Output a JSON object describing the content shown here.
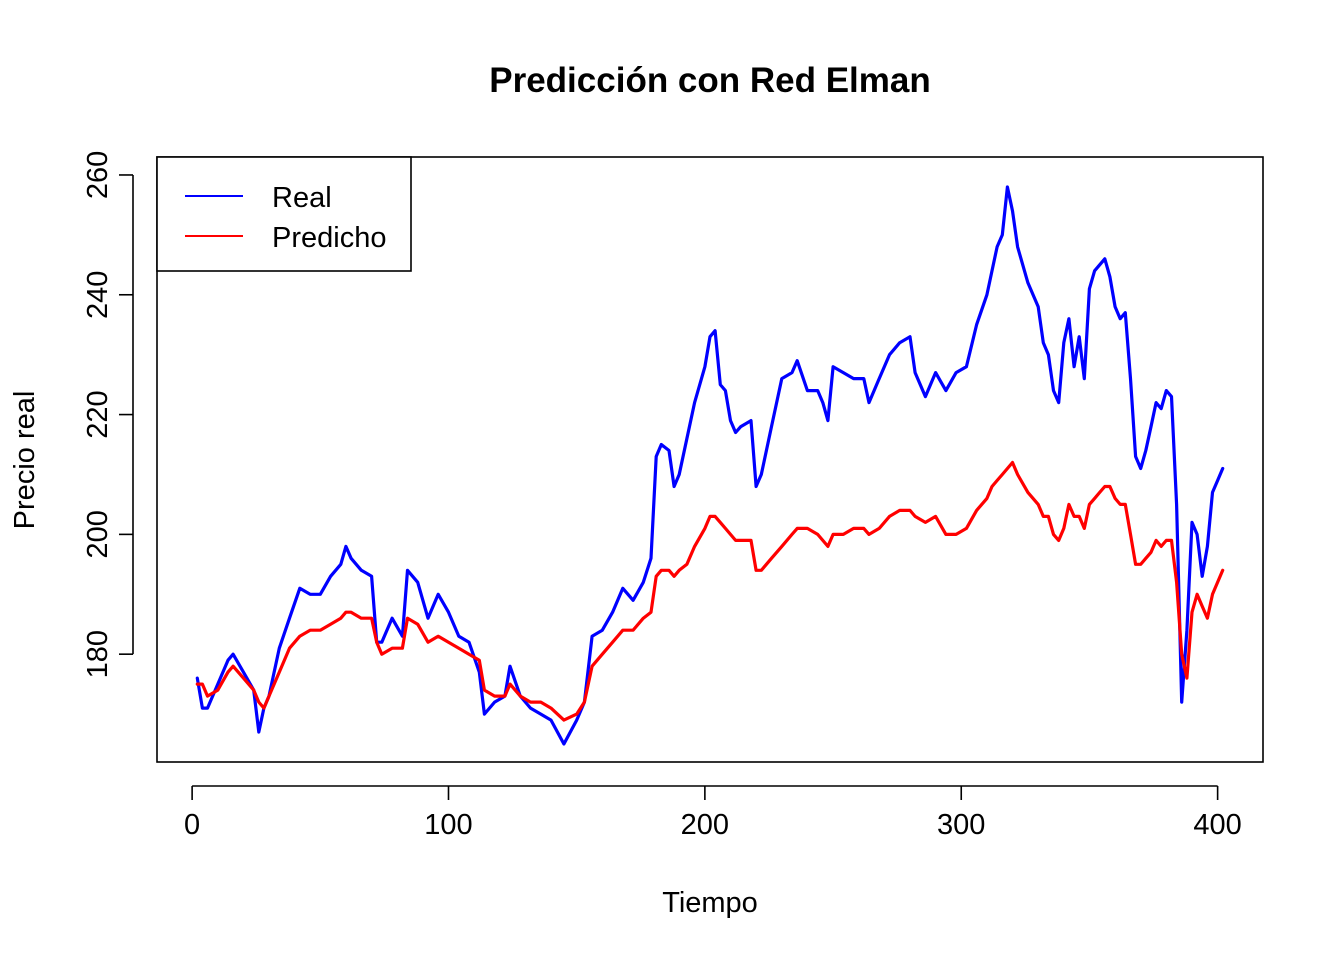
{
  "chart_data": {
    "type": "line",
    "title": "Predicción con Red Elman",
    "xlabel": "Tiempo",
    "ylabel": "Precio real",
    "xlim": [
      -13.7,
      417.7
    ],
    "ylim": [
      162,
      263
    ],
    "xticks": [
      0,
      100,
      200,
      300,
      400
    ],
    "yticks": [
      180,
      200,
      220,
      240,
      260
    ],
    "grid": false,
    "legend": {
      "placement": "top-left",
      "entries": [
        {
          "label": "Real",
          "color": "#0000FF"
        },
        {
          "label": "Predicho",
          "color": "#FF0000"
        }
      ]
    },
    "series": [
      {
        "name": "Real",
        "color": "#0000FF",
        "x": [
          2,
          4,
          6,
          10,
          14,
          16,
          20,
          24,
          26,
          28,
          30,
          34,
          38,
          42,
          46,
          50,
          54,
          58,
          60,
          62,
          66,
          70,
          72,
          74,
          78,
          82,
          84,
          88,
          92,
          96,
          100,
          104,
          108,
          112,
          114,
          118,
          122,
          124,
          128,
          132,
          136,
          140,
          145,
          150,
          153,
          156,
          160,
          164,
          168,
          172,
          176,
          179,
          181,
          183,
          186,
          188,
          190,
          193,
          196,
          200,
          202,
          204,
          206,
          208,
          210,
          212,
          214,
          218,
          220,
          222,
          226,
          230,
          234,
          236,
          240,
          244,
          246,
          248,
          250,
          254,
          258,
          262,
          264,
          268,
          272,
          276,
          280,
          282,
          286,
          290,
          294,
          298,
          302,
          306,
          310,
          312,
          314,
          316,
          318,
          320,
          322,
          326,
          330,
          332,
          334,
          336,
          338,
          340,
          342,
          344,
          346,
          348,
          350,
          352,
          354,
          356,
          358,
          360,
          362,
          364,
          366,
          368,
          370,
          372,
          374,
          376,
          378,
          380,
          382,
          384,
          386,
          388,
          390,
          392,
          394,
          396,
          398,
          400,
          402
        ],
        "y": [
          176,
          171,
          171,
          175,
          179,
          180,
          177,
          174,
          167,
          171,
          173,
          181,
          186,
          191,
          190,
          190,
          193,
          195,
          198,
          196,
          194,
          193,
          182,
          182,
          186,
          183,
          194,
          192,
          186,
          190,
          187,
          183,
          182,
          177,
          170,
          172,
          173,
          178,
          173,
          171,
          170,
          169,
          165,
          169,
          172,
          183,
          184,
          187,
          191,
          189,
          192,
          196,
          213,
          215,
          214,
          208,
          210,
          216,
          222,
          228,
          233,
          234,
          225,
          224,
          219,
          217,
          218,
          219,
          208,
          210,
          218,
          226,
          227,
          229,
          224,
          224,
          222,
          219,
          228,
          227,
          226,
          226,
          222,
          226,
          230,
          232,
          233,
          227,
          223,
          227,
          224,
          227,
          228,
          235,
          240,
          244,
          248,
          250,
          258,
          254,
          248,
          242,
          238,
          232,
          230,
          224,
          222,
          232,
          236,
          228,
          233,
          226,
          241,
          244,
          245,
          246,
          243,
          238,
          236,
          237,
          226,
          213,
          211,
          214,
          218,
          222,
          221,
          224,
          223,
          205,
          172,
          184,
          202,
          200,
          193,
          198,
          207,
          209,
          211
        ]
      },
      {
        "name": "Predicho",
        "color": "#FF0000",
        "x": [
          2,
          4,
          6,
          10,
          14,
          16,
          20,
          24,
          26,
          28,
          30,
          34,
          38,
          42,
          46,
          50,
          54,
          58,
          60,
          62,
          66,
          70,
          72,
          74,
          78,
          82,
          84,
          88,
          92,
          96,
          100,
          104,
          108,
          112,
          114,
          118,
          122,
          124,
          128,
          132,
          136,
          140,
          145,
          150,
          153,
          156,
          160,
          164,
          168,
          172,
          176,
          179,
          181,
          183,
          186,
          188,
          190,
          193,
          196,
          200,
          202,
          204,
          206,
          208,
          210,
          212,
          214,
          218,
          220,
          222,
          226,
          230,
          234,
          236,
          240,
          244,
          246,
          248,
          250,
          254,
          258,
          262,
          264,
          268,
          272,
          276,
          280,
          282,
          286,
          290,
          294,
          298,
          302,
          306,
          310,
          312,
          314,
          316,
          318,
          320,
          322,
          326,
          330,
          332,
          334,
          336,
          338,
          340,
          342,
          344,
          346,
          348,
          350,
          352,
          354,
          356,
          358,
          360,
          362,
          364,
          366,
          368,
          370,
          372,
          374,
          376,
          378,
          380,
          382,
          384,
          386,
          388,
          390,
          392,
          394,
          396,
          398,
          400,
          402
        ],
        "y": [
          175,
          175,
          173,
          174,
          177,
          178,
          176,
          174,
          172,
          171,
          173,
          177,
          181,
          183,
          184,
          184,
          185,
          186,
          187,
          187,
          186,
          186,
          182,
          180,
          181,
          181,
          186,
          185,
          182,
          183,
          182,
          181,
          180,
          179,
          174,
          173,
          173,
          175,
          173,
          172,
          172,
          171,
          169,
          170,
          172,
          178,
          180,
          182,
          184,
          184,
          186,
          187,
          193,
          194,
          194,
          193,
          194,
          195,
          198,
          201,
          203,
          203,
          202,
          201,
          200,
          199,
          199,
          199,
          194,
          194,
          196,
          198,
          200,
          201,
          201,
          200,
          199,
          198,
          200,
          200,
          201,
          201,
          200,
          201,
          203,
          204,
          204,
          203,
          202,
          203,
          200,
          200,
          201,
          204,
          206,
          208,
          209,
          210,
          211,
          212,
          210,
          207,
          205,
          203,
          203,
          200,
          199,
          201,
          205,
          203,
          203,
          201,
          205,
          206,
          207,
          208,
          208,
          206,
          205,
          205,
          200,
          195,
          195,
          196,
          197,
          199,
          198,
          199,
          199,
          192,
          180,
          176,
          187,
          190,
          188,
          186,
          190,
          192,
          194
        ]
      }
    ]
  }
}
